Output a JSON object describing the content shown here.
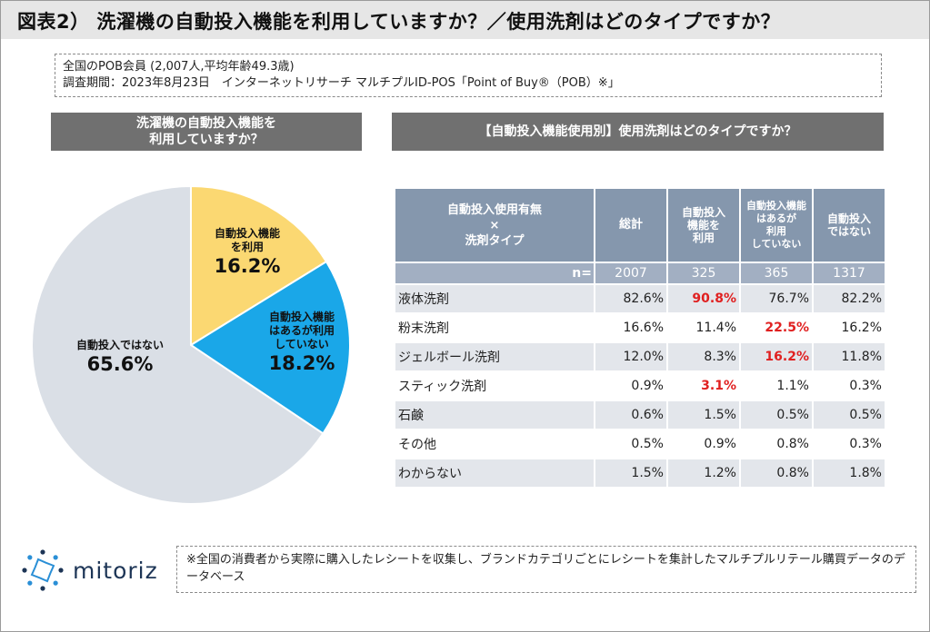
{
  "title": "図表2） 洗濯機の自動投入機能を利用していますか？／使用洗剤はどのタイプですか？",
  "info": {
    "line1": "全国のPOB会員 (2,007人,平均年齢49.3歳)",
    "line2": "調査期間：2023年8月23日　インターネットリサーチ マルチプルID-POS「Point of Buy®（POB）※」"
  },
  "left_header": {
    "line1": "洗濯機の自動投入機能を",
    "line2": "利用していますか？"
  },
  "right_header": "【自動投入機能使用別】使用洗剤はどのタイプですか？",
  "chart_data": [
    {
      "type": "pie",
      "title": "洗濯機の自動投入機能を利用していますか？",
      "slices": [
        {
          "label": "自動投入機能を利用",
          "label_lines": [
            "自動投入機能",
            "を利用"
          ],
          "value": 16.2,
          "display": "16.2%",
          "color": "#fbd872"
        },
        {
          "label": "自動投入機能はあるが利用していない",
          "label_lines": [
            "自動投入機能",
            "はあるが利用",
            "していない"
          ],
          "value": 18.2,
          "display": "18.2%",
          "color": "#1aa7e8"
        },
        {
          "label": "自動投入ではない",
          "label_lines": [
            "自動投入ではない"
          ],
          "value": 65.6,
          "display": "65.6%",
          "color": "#dadfe6"
        }
      ]
    },
    {
      "type": "table",
      "title": "【自動投入機能使用別】使用洗剤はどのタイプですか？",
      "corner": {
        "line1": "自動投入使用有無",
        "line2": "×",
        "line3": "洗剤タイプ"
      },
      "columns": [
        {
          "lines": [
            "総計"
          ]
        },
        {
          "lines": [
            "自動投入",
            "機能を",
            "利用"
          ]
        },
        {
          "lines": [
            "自動投入機能",
            "はあるが",
            "利用",
            "していない"
          ]
        },
        {
          "lines": [
            "自動投入",
            "ではない"
          ]
        }
      ],
      "n_label": "n=",
      "n_values": [
        "2007",
        "325",
        "365",
        "1317"
      ],
      "rows": [
        {
          "label": "液体洗剤",
          "values": [
            "82.6%",
            "90.8%",
            "76.7%",
            "82.2%"
          ],
          "highlight": [
            false,
            true,
            false,
            false
          ]
        },
        {
          "label": "粉末洗剤",
          "values": [
            "16.6%",
            "11.4%",
            "22.5%",
            "16.2%"
          ],
          "highlight": [
            false,
            false,
            true,
            false
          ]
        },
        {
          "label": "ジェルボール洗剤",
          "values": [
            "12.0%",
            "8.3%",
            "16.2%",
            "11.8%"
          ],
          "highlight": [
            false,
            false,
            true,
            false
          ]
        },
        {
          "label": "スティック洗剤",
          "values": [
            "0.9%",
            "3.1%",
            "1.1%",
            "0.3%"
          ],
          "highlight": [
            false,
            true,
            false,
            false
          ]
        },
        {
          "label": "石鹸",
          "values": [
            "0.6%",
            "1.5%",
            "0.5%",
            "0.5%"
          ],
          "highlight": [
            false,
            false,
            false,
            false
          ]
        },
        {
          "label": "その他",
          "values": [
            "0.5%",
            "0.9%",
            "0.8%",
            "0.3%"
          ],
          "highlight": [
            false,
            false,
            false,
            false
          ]
        },
        {
          "label": "わからない",
          "values": [
            "1.5%",
            "1.2%",
            "0.8%",
            "1.8%"
          ],
          "highlight": [
            false,
            false,
            false,
            false
          ]
        }
      ],
      "highlight_color": "#e02020"
    }
  ],
  "logo": {
    "text": "mitoriz",
    "icon": "mitoriz-logo-icon",
    "color": "#1d3556"
  },
  "note": "※全国の消費者から実際に購入したレシートを収集し、ブランドカテゴリごとにレシートを集計したマルチプルリテール購買データのデータベース"
}
